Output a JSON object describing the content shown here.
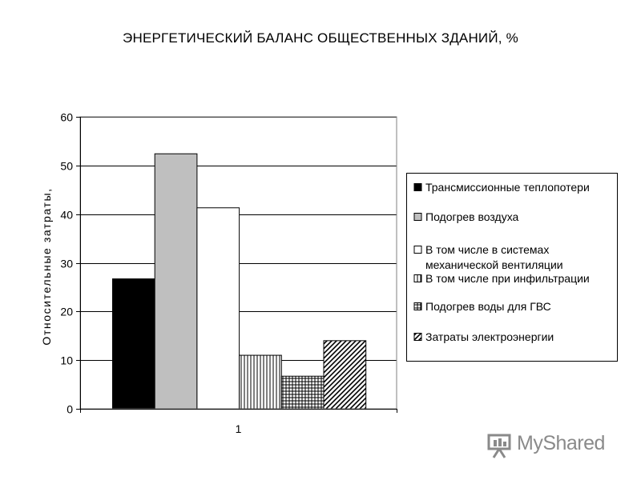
{
  "chart_data": {
    "type": "bar",
    "title": "ЭНЕРГЕТИЧЕСКИЙ БАЛАНС ОБЩЕСТВЕННЫХ ЗДАНИЙ, %",
    "ylabel": "Относительные затраты,",
    "xlabel": "",
    "categories": [
      "1"
    ],
    "ylim": [
      0,
      60
    ],
    "yticks": [
      "0",
      "10",
      "20",
      "30",
      "40",
      "50",
      "60"
    ],
    "grid": true,
    "legend_position": "right",
    "series": [
      {
        "name": "Трансмиссионные теплопотери",
        "values": [
          26.7
        ],
        "fill": "solid-black"
      },
      {
        "name": "Подогрев воздуха",
        "values": [
          52.4
        ],
        "fill": "solid-gray"
      },
      {
        "name": "В том числе в системах механической вентиляции",
        "values": [
          41.3
        ],
        "fill": "white"
      },
      {
        "name": "В том числе при инфильтрации",
        "values": [
          11.0
        ],
        "fill": "vertical-lines"
      },
      {
        "name": "Подогрев воды для ГВС",
        "values": [
          6.7
        ],
        "fill": "grid"
      },
      {
        "name": "Затраты электроэнергии",
        "values": [
          14.0
        ],
        "fill": "diagonal-lines"
      }
    ],
    "legend_lines": [
      [
        "Трансмиссионные теплопотери"
      ],
      [
        "Подогрев воздуха"
      ],
      [
        "В том числе в системах",
        "механической вентиляции"
      ],
      [
        "В том числе при инфильтрации"
      ],
      [
        "Подогрев воды для ГВС"
      ],
      [
        "Затраты электроэнергии"
      ]
    ]
  },
  "watermark": {
    "text": "MyShared",
    "icon": "presentation-board-icon"
  },
  "colors": {
    "bar_gray": "#bfbfbf",
    "black": "#000000",
    "grid": "#000000",
    "watermark": "#8a8a8a"
  }
}
